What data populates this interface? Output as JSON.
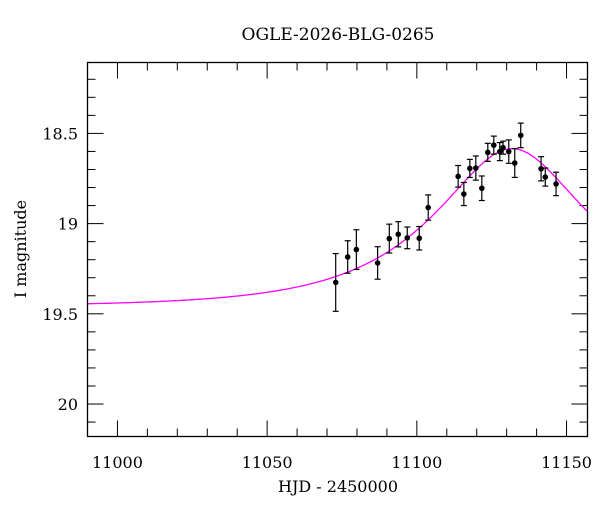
{
  "chart_data": {
    "type": "scatter",
    "title": "OGLE-2026-BLG-0265",
    "xlabel": "HJD - 2450000",
    "ylabel": "I magnitude",
    "xlim": [
      10990,
      11157
    ],
    "ylim": [
      20.18,
      18.107
    ],
    "y_inverted": true,
    "grid": false,
    "xticks": [
      11000,
      11050,
      11100,
      11150
    ],
    "xtick_labels": [
      "11000",
      "11050",
      "11100",
      "11150"
    ],
    "yticks": [
      18.5,
      19,
      19.5,
      20
    ],
    "ytick_labels": [
      "18.5",
      "19",
      "19.5",
      "20"
    ],
    "colors": {
      "data": "#000000",
      "model": "#ff00ff"
    },
    "series": [
      {
        "name": "data",
        "x": [
          11072.9,
          11076.9,
          11079.8,
          11086.9,
          11090.8,
          11093.8,
          11096.8,
          11100.8,
          11103.8,
          11113.8,
          11115.7,
          11117.7,
          11119.7,
          11121.7,
          11123.7,
          11125.7,
          11127.7,
          11128.8,
          11130.7,
          11132.7,
          11134.7,
          11141.5,
          11142.9,
          11146.5
        ],
        "y": [
          19.326,
          19.185,
          19.144,
          19.218,
          19.083,
          19.059,
          19.079,
          19.081,
          18.911,
          18.738,
          18.836,
          18.694,
          18.692,
          18.804,
          18.605,
          18.565,
          18.601,
          18.579,
          18.601,
          18.664,
          18.511,
          18.696,
          18.742,
          18.78
        ],
        "yerr": [
          0.16,
          0.09,
          0.11,
          0.09,
          0.08,
          0.07,
          0.06,
          0.065,
          0.07,
          0.06,
          0.064,
          0.05,
          0.067,
          0.068,
          0.05,
          0.05,
          0.05,
          0.036,
          0.065,
          0.08,
          0.068,
          0.067,
          0.05,
          0.065
        ]
      },
      {
        "name": "model",
        "type": "line",
        "params": {
          "t0": 11131.8,
          "u0": 0.485,
          "tE": 45.8,
          "baseline_mag": 19.46
        }
      }
    ]
  }
}
